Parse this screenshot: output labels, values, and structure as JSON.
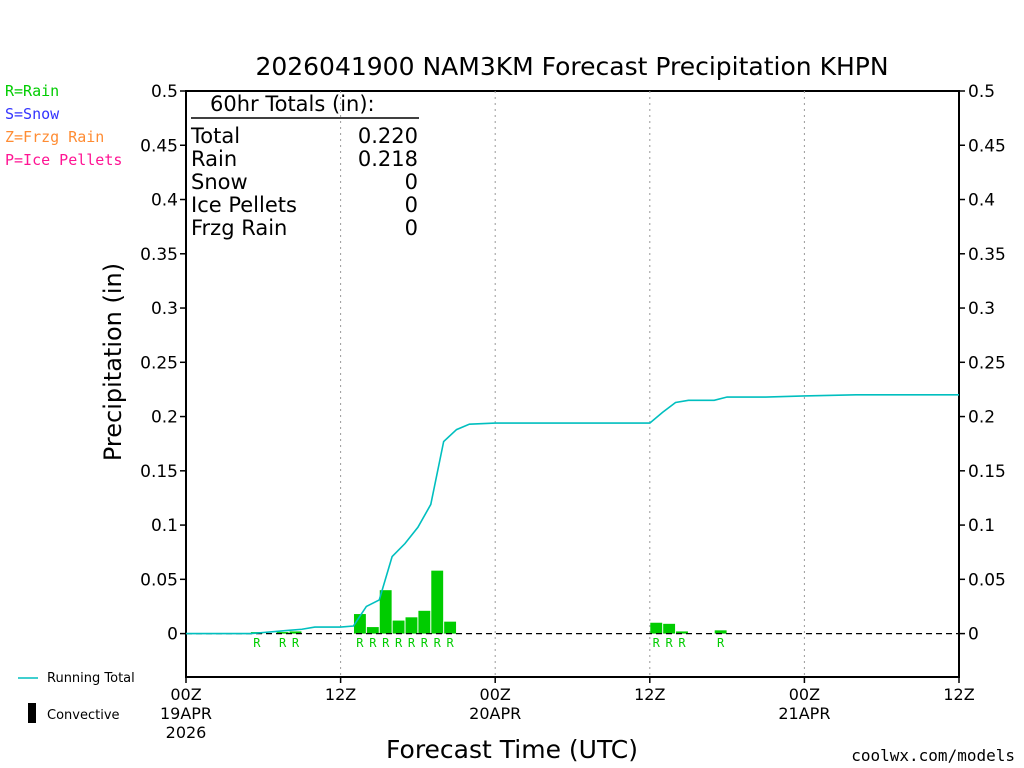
{
  "colors": {
    "rain": "#00cc00",
    "snow": "#3333ff",
    "frzg": "#ff8c33",
    "ice": "#ff1493",
    "running": "#00bfbf",
    "credit": "#cc0000"
  },
  "legend_ptypes": [
    {
      "text": "R=Rain",
      "color": "#00cc00"
    },
    {
      "text": "S=Snow",
      "color": "#3333ff"
    },
    {
      "text": "Z=Frzg Rain",
      "color": "#ff8c33"
    },
    {
      "text": "P=Ice Pellets",
      "color": "#ff1493"
    }
  ],
  "legend_series": {
    "running": "Running Total",
    "convective": "Convective"
  },
  "credit": "coolwx.com/models",
  "totals": {
    "header": "60hr Totals (in):",
    "rows": [
      {
        "label": "Total",
        "value": "0.220"
      },
      {
        "label": "Rain",
        "value": "0.218"
      },
      {
        "label": "Snow",
        "value": "0"
      },
      {
        "label": "Ice Pellets",
        "value": "0"
      },
      {
        "label": "Frzg Rain",
        "value": "0"
      }
    ]
  },
  "chart_data": {
    "type": "bar",
    "title": "2026041900 NAM3KM Forecast Precipitation KHPN",
    "xlabel": "Forecast Time (UTC)",
    "ylabel": "Precipitation (in)",
    "xlim": [
      0,
      60
    ],
    "ylim": [
      -0.04,
      0.5
    ],
    "yticks": [
      0,
      0.05,
      0.1,
      0.15,
      0.2,
      0.25,
      0.3,
      0.35,
      0.4,
      0.45,
      0.5
    ],
    "ytick_labels": [
      "0",
      "0.05",
      "0.1",
      "0.15",
      "0.2",
      "0.25",
      "0.3",
      "0.35",
      "0.4",
      "0.45",
      "0.5"
    ],
    "xticks": [
      {
        "hour": 0,
        "lines": [
          "00Z",
          "19APR",
          "2026"
        ]
      },
      {
        "hour": 12,
        "lines": [
          "12Z"
        ]
      },
      {
        "hour": 24,
        "lines": [
          "00Z",
          "20APR"
        ]
      },
      {
        "hour": 36,
        "lines": [
          "12Z"
        ]
      },
      {
        "hour": 48,
        "lines": [
          "00Z",
          "21APR"
        ]
      },
      {
        "hour": 60,
        "lines": [
          "12Z"
        ]
      }
    ],
    "gridlines_hours": [
      12,
      24,
      36,
      48
    ],
    "bars": [
      {
        "hour": 6,
        "value": 0.001,
        "ptype": "R"
      },
      {
        "hour": 8,
        "value": 0.001,
        "ptype": "R"
      },
      {
        "hour": 9,
        "value": 0.002,
        "ptype": "R"
      },
      {
        "hour": 14,
        "value": 0.018,
        "ptype": "R"
      },
      {
        "hour": 15,
        "value": 0.006,
        "ptype": "R"
      },
      {
        "hour": 16,
        "value": 0.04,
        "ptype": "R"
      },
      {
        "hour": 17,
        "value": 0.012,
        "ptype": "R"
      },
      {
        "hour": 18,
        "value": 0.015,
        "ptype": "R"
      },
      {
        "hour": 19,
        "value": 0.021,
        "ptype": "R"
      },
      {
        "hour": 20,
        "value": 0.058,
        "ptype": "R"
      },
      {
        "hour": 21,
        "value": 0.011,
        "ptype": "R"
      },
      {
        "hour": 37,
        "value": 0.01,
        "ptype": "R"
      },
      {
        "hour": 38,
        "value": 0.009,
        "ptype": "R"
      },
      {
        "hour": 39,
        "value": 0.002,
        "ptype": "R"
      },
      {
        "hour": 42,
        "value": 0.003,
        "ptype": "R"
      }
    ],
    "running_total": {
      "name": "Running Total",
      "x": [
        0,
        5,
        6,
        7,
        8,
        9,
        10,
        11,
        12,
        13,
        14,
        15,
        16,
        17,
        18,
        19,
        20,
        21,
        22,
        24,
        30,
        34,
        36,
        37,
        38,
        39,
        40,
        41,
        42,
        45,
        48,
        52,
        56,
        60
      ],
      "y": [
        0,
        0,
        0.001,
        0.002,
        0.003,
        0.004,
        0.006,
        0.006,
        0.006,
        0.007,
        0.025,
        0.031,
        0.071,
        0.083,
        0.098,
        0.119,
        0.177,
        0.188,
        0.193,
        0.194,
        0.194,
        0.194,
        0.194,
        0.204,
        0.213,
        0.215,
        0.215,
        0.215,
        0.218,
        0.218,
        0.219,
        0.22,
        0.22,
        0.22
      ]
    }
  }
}
